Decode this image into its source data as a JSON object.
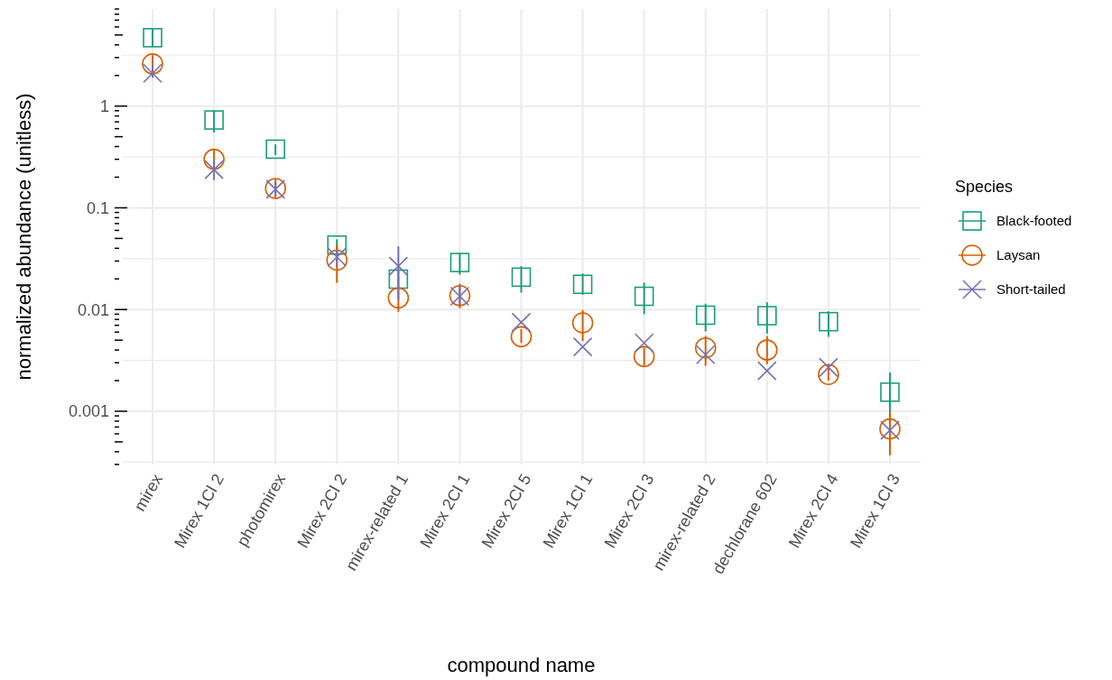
{
  "chart_data": {
    "type": "scatter",
    "xlabel": "compound name",
    "ylabel": "normalized abundance (unitless)",
    "legend_title": "Species",
    "legend": "right",
    "grid": true,
    "log": "y",
    "categories": [
      "mirex",
      "Mirex 1Cl 2",
      "photomirex",
      "Mirex 2Cl 2",
      "mirex-related 1",
      "Mirex 2Cl 1",
      "Mirex 2Cl 5",
      "Mirex 1Cl 1",
      "Mirex 2Cl 3",
      "mirex-related 2",
      "dechlorane 602",
      "Mirex 2Cl 4",
      "Mirex 1Cl 3"
    ],
    "ylim": [
      0.0003,
      9
    ],
    "yticks": [
      {
        "value": 0.000316,
        "label": null
      },
      0.001,
      {
        "value": 0.00316,
        "label": null
      },
      0.01,
      {
        "value": 0.0316,
        "label": null
      },
      0.1,
      {
        "value": 0.316,
        "label": null
      },
      1,
      {
        "value": 3.16,
        "label": null
      }
    ],
    "series": [
      {
        "name": "Black-footed",
        "color": "#1b9e77",
        "marker": "square",
        "values": [
          4.7,
          0.73,
          0.377,
          0.043,
          0.0199,
          0.029,
          0.0208,
          0.0177,
          0.0135,
          0.0088,
          0.0087,
          0.0076,
          0.00154
        ],
        "errors": [
          [
            3.8,
            5.8
          ],
          [
            0.55,
            0.9
          ],
          [
            0.33,
            0.42
          ],
          [
            0.034,
            0.049
          ],
          [
            0.016,
            0.024
          ],
          [
            0.022,
            0.036
          ],
          [
            0.0147,
            0.0267
          ],
          [
            0.014,
            0.0226
          ],
          [
            0.009,
            0.0184
          ],
          [
            0.0061,
            0.0114
          ],
          [
            0.0058,
            0.0118
          ],
          [
            0.0054,
            0.0096
          ],
          [
            0.00076,
            0.0024
          ]
        ]
      },
      {
        "name": "Laysan",
        "color": "#d95f02",
        "marker": "circle",
        "values": [
          2.6,
          0.3,
          0.155,
          0.0306,
          0.013,
          0.0137,
          0.0054,
          0.0074,
          0.00345,
          0.0042,
          0.004,
          0.0023,
          0.00067
        ],
        "errors": [
          [
            2.1,
            3.17
          ],
          [
            0.245,
            0.37
          ],
          [
            0.124,
            0.194
          ],
          [
            0.0183,
            0.043
          ],
          [
            0.0095,
            0.016
          ],
          [
            0.0103,
            0.0171
          ],
          [
            0.0047,
            0.0064
          ],
          [
            0.0049,
            0.0099
          ],
          [
            0.0028,
            0.0042
          ],
          [
            0.0028,
            0.0055
          ],
          [
            0.0029,
            0.0055
          ],
          [
            0.002,
            0.0029
          ],
          [
            0.00037,
            0.00099
          ]
        ]
      },
      {
        "name": "Short-tailed",
        "color": "#7570b3",
        "marker": "cross",
        "values": [
          2.1,
          0.237,
          0.152,
          0.0328,
          0.0267,
          0.0135,
          0.0075,
          0.0043,
          0.0047,
          0.0036,
          0.0025,
          0.0027,
          0.00065
        ],
        "errors": [
          [
            1.9,
            2.5
          ],
          [
            0.187,
            0.29
          ],
          [
            0.13,
            0.18
          ],
          [
            0.026,
            0.04
          ],
          [
            0.0126,
            0.0418
          ],
          [
            0.011,
            0.018
          ],
          null,
          null,
          null,
          null,
          null,
          null,
          null
        ]
      }
    ]
  }
}
